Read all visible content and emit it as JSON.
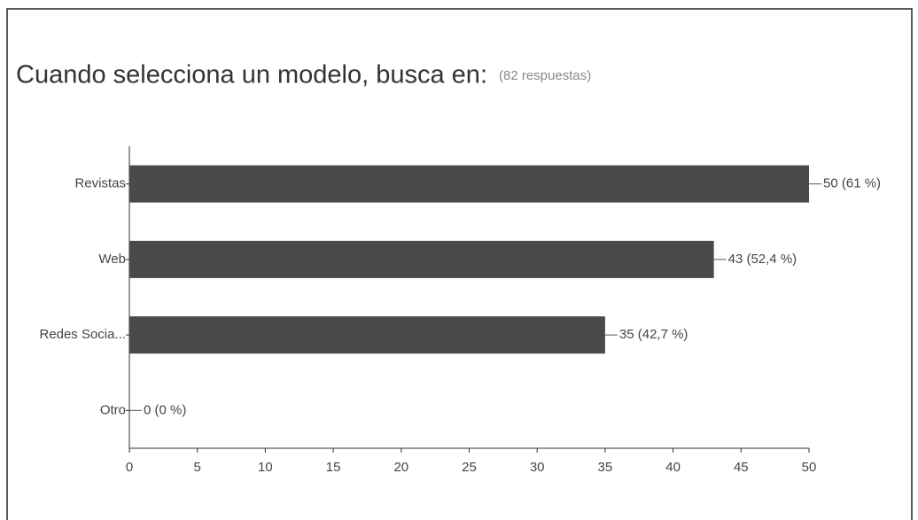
{
  "chart_data": {
    "type": "bar",
    "orientation": "horizontal",
    "title": "Cuando selecciona un modelo, busca en:",
    "subtitle": "(82 respuestas)",
    "categories": [
      "Revistas",
      "Web",
      "Redes Socia...",
      "Otro"
    ],
    "values": [
      50,
      43,
      35,
      0
    ],
    "value_labels": [
      "50 (61 %)",
      "43 (52,4 %)",
      "35 (42,7 %)",
      "0 (0 %)"
    ],
    "color": "#4a4a4a",
    "xlim": [
      0,
      50
    ],
    "xticks": [
      0,
      5,
      10,
      15,
      20,
      25,
      30,
      35,
      40,
      45,
      50
    ]
  }
}
